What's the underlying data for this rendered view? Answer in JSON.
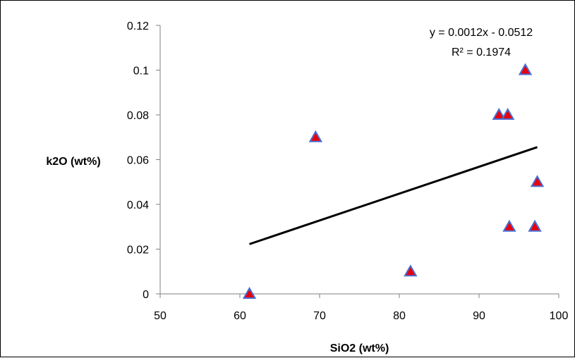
{
  "chart_data": {
    "type": "scatter",
    "title": "",
    "xlabel": "SiO2 (wt%)",
    "ylabel": "k2O (wt%)",
    "xlim": [
      50,
      100
    ],
    "ylim": [
      0,
      0.12
    ],
    "x_ticks": [
      "50",
      "60",
      "70",
      "80",
      "90",
      "100"
    ],
    "y_ticks": [
      "0",
      "0.02",
      "0.04",
      "0.06",
      "0.08",
      "0.1",
      "0.12"
    ],
    "grid": false,
    "legend": "none",
    "marker": "triangle",
    "marker_color": "#e8000b",
    "marker_edge_color": "#4a6fd1",
    "trendline_color": "#000000",
    "series": [
      {
        "points": [
          {
            "x": 61.2,
            "y": 0.0
          },
          {
            "x": 69.5,
            "y": 0.07
          },
          {
            "x": 81.4,
            "y": 0.01
          },
          {
            "x": 92.5,
            "y": 0.08
          },
          {
            "x": 93.6,
            "y": 0.08
          },
          {
            "x": 93.8,
            "y": 0.03
          },
          {
            "x": 95.8,
            "y": 0.1
          },
          {
            "x": 97.0,
            "y": 0.03
          },
          {
            "x": 97.3,
            "y": 0.05
          }
        ]
      }
    ],
    "trendline": {
      "type": "linear",
      "slope": 0.0012,
      "intercept": -0.0512,
      "x_range": [
        61.2,
        97.3
      ],
      "equation": "y = 0.0012x - 0.0512",
      "r_squared": "R² = 0.1974"
    }
  }
}
